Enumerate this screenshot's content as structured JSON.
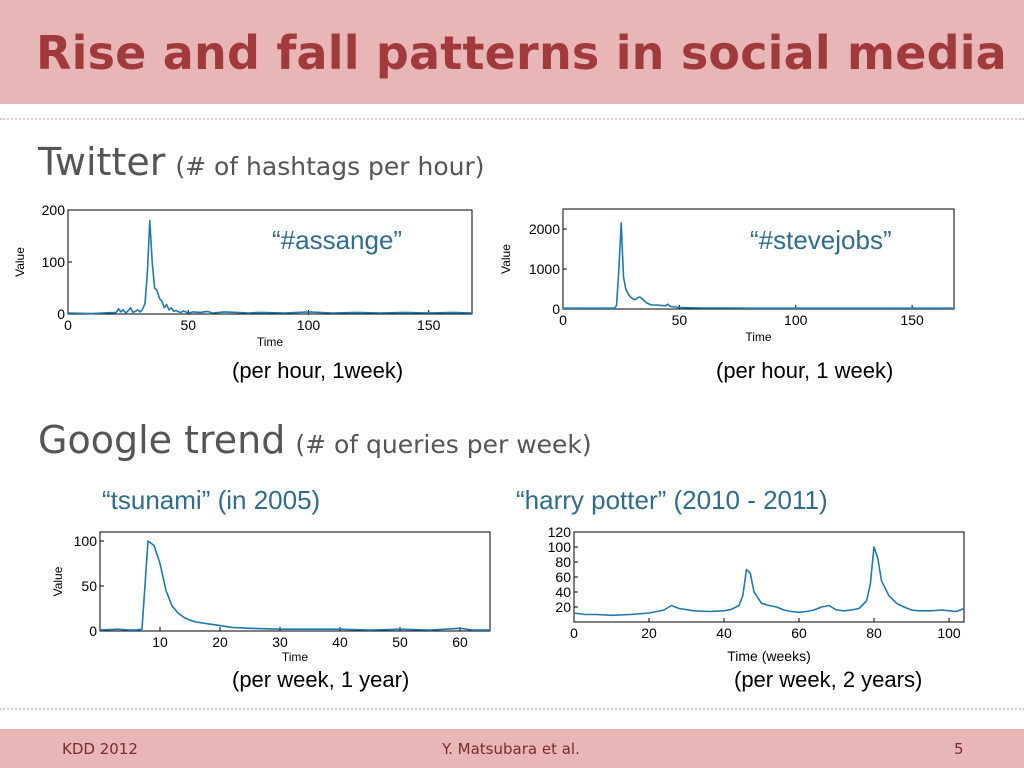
{
  "slide": {
    "title": "Rise and fall patterns in social media",
    "twitter_heading": "Twitter",
    "twitter_sub": "(# of hashtags per hour)",
    "google_heading": "Google trend",
    "google_sub": "(# of queries per week)"
  },
  "labels": {
    "assange": "“#assange”",
    "stevejobs": "“#stevejobs”",
    "tsunami": "“tsunami” (in 2005)",
    "harry": "“harry potter” (2010 - 2011)"
  },
  "captions": {
    "assange": "(per hour, 1week)",
    "stevejobs": "(per hour, 1 week)",
    "tsunami": "(per week, 1 year)",
    "harry": "(per week, 2 years)"
  },
  "footer": {
    "left": "KDD 2012",
    "center": "Y. Matsubara et al.",
    "right": "5"
  },
  "colors": {
    "line": "#1f7ab2",
    "header_bg": "#e8b6b6",
    "title": "#a03a3d",
    "chart_label": "#2f6d8a"
  },
  "chart_data": [
    {
      "id": "assange",
      "type": "line",
      "xlabel": "Time",
      "ylabel": "Value",
      "xlim": [
        0,
        168
      ],
      "ylim": [
        0,
        200
      ],
      "xticks": [
        0,
        50,
        100,
        150
      ],
      "yticks": [
        0,
        100,
        200
      ],
      "series": [
        {
          "x": [
            0,
            10,
            20,
            21,
            22,
            23,
            24,
            25,
            26,
            27,
            28,
            29,
            30,
            31,
            32,
            33,
            34,
            35,
            36,
            37,
            38,
            39,
            40,
            41,
            42,
            43,
            44,
            45,
            46,
            47,
            48,
            50,
            52,
            55,
            58,
            60,
            65,
            70,
            75,
            80,
            90,
            100,
            110,
            120,
            130,
            140,
            150,
            160,
            168
          ],
          "y": [
            2,
            1,
            3,
            10,
            4,
            8,
            2,
            6,
            12,
            3,
            5,
            8,
            4,
            9,
            20,
            80,
            180,
            100,
            50,
            45,
            30,
            25,
            12,
            18,
            8,
            12,
            5,
            7,
            4,
            3,
            6,
            2,
            4,
            3,
            5,
            2,
            4,
            3,
            2,
            3,
            2,
            4,
            2,
            3,
            2,
            3,
            2,
            3,
            2
          ]
        }
      ]
    },
    {
      "id": "stevejobs",
      "type": "line",
      "xlabel": "Time",
      "ylabel": "Value",
      "xlim": [
        0,
        168
      ],
      "ylim": [
        0,
        2500
      ],
      "xticks": [
        0,
        50,
        100,
        150
      ],
      "yticks": [
        0,
        1000,
        2000
      ],
      "series": [
        {
          "x": [
            0,
            10,
            20,
            22,
            23,
            24,
            25,
            26,
            27,
            28,
            29,
            30,
            31,
            32,
            33,
            34,
            35,
            36,
            38,
            40,
            42,
            44,
            45,
            46,
            48,
            50,
            55,
            60,
            70,
            80,
            100,
            120,
            140,
            160,
            168
          ],
          "y": [
            20,
            20,
            20,
            20,
            80,
            1000,
            2150,
            800,
            500,
            380,
            300,
            250,
            230,
            280,
            300,
            260,
            200,
            150,
            100,
            100,
            90,
            80,
            120,
            70,
            50,
            40,
            30,
            25,
            25,
            20,
            20,
            20,
            20,
            20,
            20
          ]
        }
      ]
    },
    {
      "id": "tsunami",
      "type": "line",
      "xlabel": "Time",
      "ylabel": "Value",
      "xlim": [
        0,
        65
      ],
      "ylim": [
        0,
        110
      ],
      "xticks": [
        10,
        20,
        30,
        40,
        50,
        60
      ],
      "yticks": [
        0,
        50,
        100
      ],
      "series": [
        {
          "x": [
            0,
            3,
            5,
            6,
            7,
            8,
            9,
            10,
            11,
            12,
            13,
            14,
            15,
            16,
            18,
            20,
            22,
            25,
            30,
            35,
            40,
            45,
            50,
            55,
            60,
            62,
            65
          ],
          "y": [
            1,
            2,
            1,
            1,
            2,
            100,
            95,
            75,
            45,
            28,
            20,
            15,
            12,
            10,
            8,
            6,
            4,
            3,
            2,
            2,
            2,
            1,
            2,
            1,
            3,
            1,
            1
          ]
        }
      ]
    },
    {
      "id": "harry",
      "type": "line",
      "xlabel": "Time (weeks)",
      "ylabel": "",
      "xlim": [
        0,
        104
      ],
      "ylim": [
        0,
        120
      ],
      "xticks": [
        0,
        20,
        40,
        60,
        80,
        100
      ],
      "yticks": [
        20,
        40,
        60,
        80,
        100,
        120
      ],
      "series": [
        {
          "x": [
            0,
            3,
            6,
            10,
            15,
            20,
            24,
            26,
            28,
            32,
            36,
            40,
            42,
            44,
            45,
            46,
            47,
            48,
            50,
            52,
            54,
            56,
            58,
            60,
            62,
            64,
            66,
            68,
            70,
            72,
            74,
            76,
            78,
            79,
            80,
            81,
            82,
            84,
            86,
            88,
            90,
            92,
            95,
            98,
            100,
            102,
            104
          ],
          "y": [
            12,
            10,
            10,
            9,
            10,
            12,
            16,
            22,
            18,
            15,
            14,
            15,
            17,
            22,
            35,
            70,
            65,
            40,
            25,
            22,
            20,
            16,
            14,
            13,
            14,
            16,
            20,
            22,
            16,
            15,
            16,
            18,
            28,
            50,
            100,
            85,
            55,
            35,
            25,
            20,
            16,
            15,
            15,
            16,
            15,
            14,
            18
          ]
        }
      ]
    }
  ]
}
